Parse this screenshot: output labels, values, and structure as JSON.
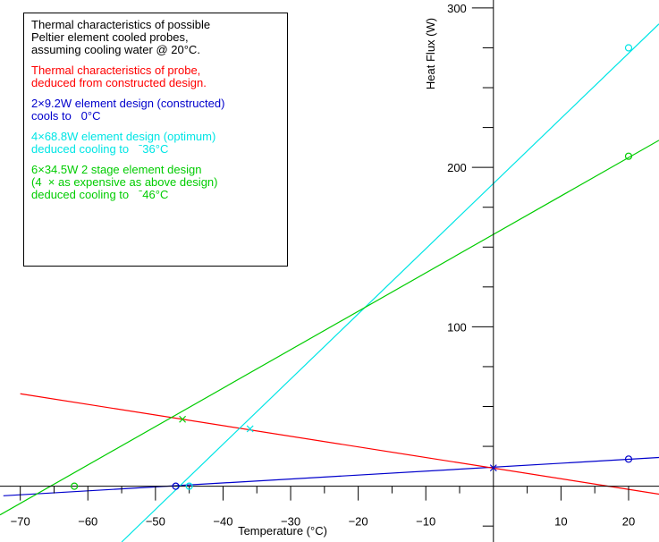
{
  "chart_data": {
    "type": "line",
    "xlabel": "Temperature (°C)",
    "ylabel": "Heat Flux (W)",
    "xlim": [
      -73,
      24.5
    ],
    "ylim": [
      -35,
      305
    ],
    "x_ticks": [
      -70,
      -60,
      -50,
      -40,
      -30,
      -20,
      -10,
      10,
      20
    ],
    "x_tick_labels": [
      "−70",
      "−60",
      "−50",
      "−40",
      "−30",
      "−20",
      "−10",
      "10",
      "20"
    ],
    "y_ticks": [
      100,
      200,
      300
    ],
    "y_tick_labels": [
      "100",
      "200",
      "300"
    ],
    "grid": false,
    "series": [
      {
        "color": "#0000cc",
        "line": [
          [
            -72.5,
            -6
          ],
          [
            24.5,
            18
          ]
        ],
        "markers": [
          {
            "x": -47,
            "y": 0,
            "shape": "circle"
          },
          {
            "x": 20,
            "y": 17,
            "shape": "circle"
          },
          {
            "x": 0,
            "y": 11.5,
            "shape": "cross"
          }
        ]
      },
      {
        "color": "#ff0000",
        "line": [
          [
            -70,
            58
          ],
          [
            24.5,
            -5
          ]
        ],
        "markers": []
      },
      {
        "color": "#00e5e5",
        "line": [
          [
            -55,
            -35
          ],
          [
            24.5,
            290
          ]
        ],
        "markers": [
          {
            "x": -45,
            "y": 0,
            "shape": "circle"
          },
          {
            "x": 20,
            "y": 275,
            "shape": "circle"
          },
          {
            "x": -36,
            "y": 36,
            "shape": "cross"
          }
        ]
      },
      {
        "color": "#00cc00",
        "line": [
          [
            -73,
            -18
          ],
          [
            24.5,
            217
          ]
        ],
        "markers": [
          {
            "x": -62,
            "y": 0,
            "shape": "circle"
          },
          {
            "x": 20,
            "y": 207,
            "shape": "circle"
          },
          {
            "x": -46,
            "y": 42,
            "shape": "cross"
          }
        ]
      }
    ]
  },
  "legend": {
    "intro": [
      "Thermal characteristics of possible",
      "Peltier element cooled probes,",
      "assuming cooling water @ 20°C."
    ],
    "probe": [
      "Thermal characteristics of probe,",
      "deduced from constructed design."
    ],
    "constructed": [
      "2×9.2W element design (constructed)",
      "cools to   0°C"
    ],
    "optimum": [
      "4×68.8W element design (optimum)",
      "deduced cooling to   ˉ36°C"
    ],
    "two_stage": [
      "6×34.5W 2 stage element design",
      "(4  × as expensive as above design)",
      "deduced cooling to   ˉ46°C"
    ]
  },
  "colors": {
    "black": "#000000",
    "red": "#ff0000",
    "blue": "#0000cc",
    "cyan": "#00e5e5",
    "green": "#00cc00"
  }
}
